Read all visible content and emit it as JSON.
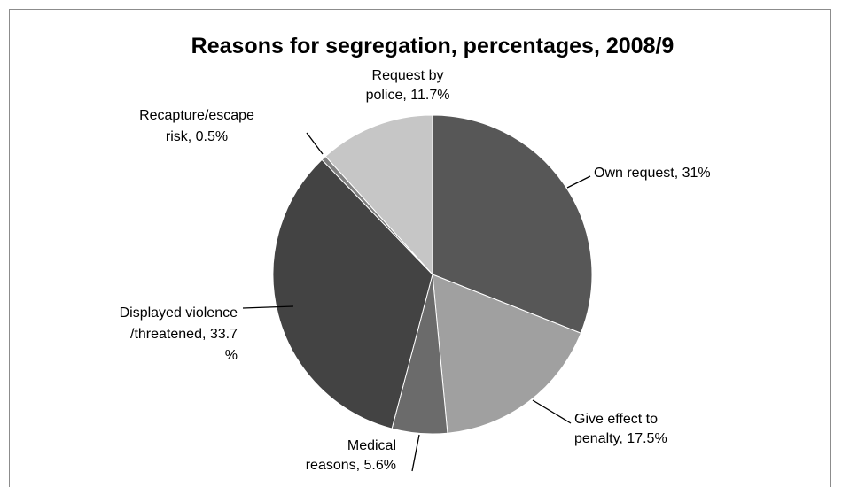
{
  "chart_data": {
    "type": "pie",
    "title": "Reasons for segregation, percentages, 2008/9",
    "slices": [
      {
        "label": "Own request, 31%",
        "name": "Own request",
        "value": 31,
        "color": "#575757"
      },
      {
        "label": "Give effect to penalty, 17.5%",
        "name": "Give effect to penalty",
        "value": 17.5,
        "color": "#a0a0a0"
      },
      {
        "label": "Medical reasons, 5.6%",
        "name": "Medical reasons",
        "value": 5.6,
        "color": "#6b6b6b"
      },
      {
        "label": "Displayed violence /threatened, 33.7 %",
        "name": "Displayed violence /threatened",
        "value": 33.7,
        "color": "#434343"
      },
      {
        "label": "Recapture/escape risk, 0.5%",
        "name": "Recapture/escape risk",
        "value": 0.5,
        "color": "#808080"
      },
      {
        "label": "Request by police, 11.7%",
        "name": "Request by police",
        "value": 11.7,
        "color": "#c6c6c6"
      }
    ],
    "label_lines": [
      [
        "Own request, 31%"
      ],
      [
        "Give effect to",
        "penalty, 17.5%"
      ],
      [
        "Medical",
        "reasons, 5.6%"
      ],
      [
        "Displayed violence",
        "/threatened, 33.7",
        "%"
      ],
      [
        "Recapture/escape",
        "risk, 0.5%"
      ],
      [
        "Request by",
        "police, 11.7%"
      ]
    ],
    "legend": "none",
    "start_angle_deg": 0,
    "direction": "clockwise"
  }
}
